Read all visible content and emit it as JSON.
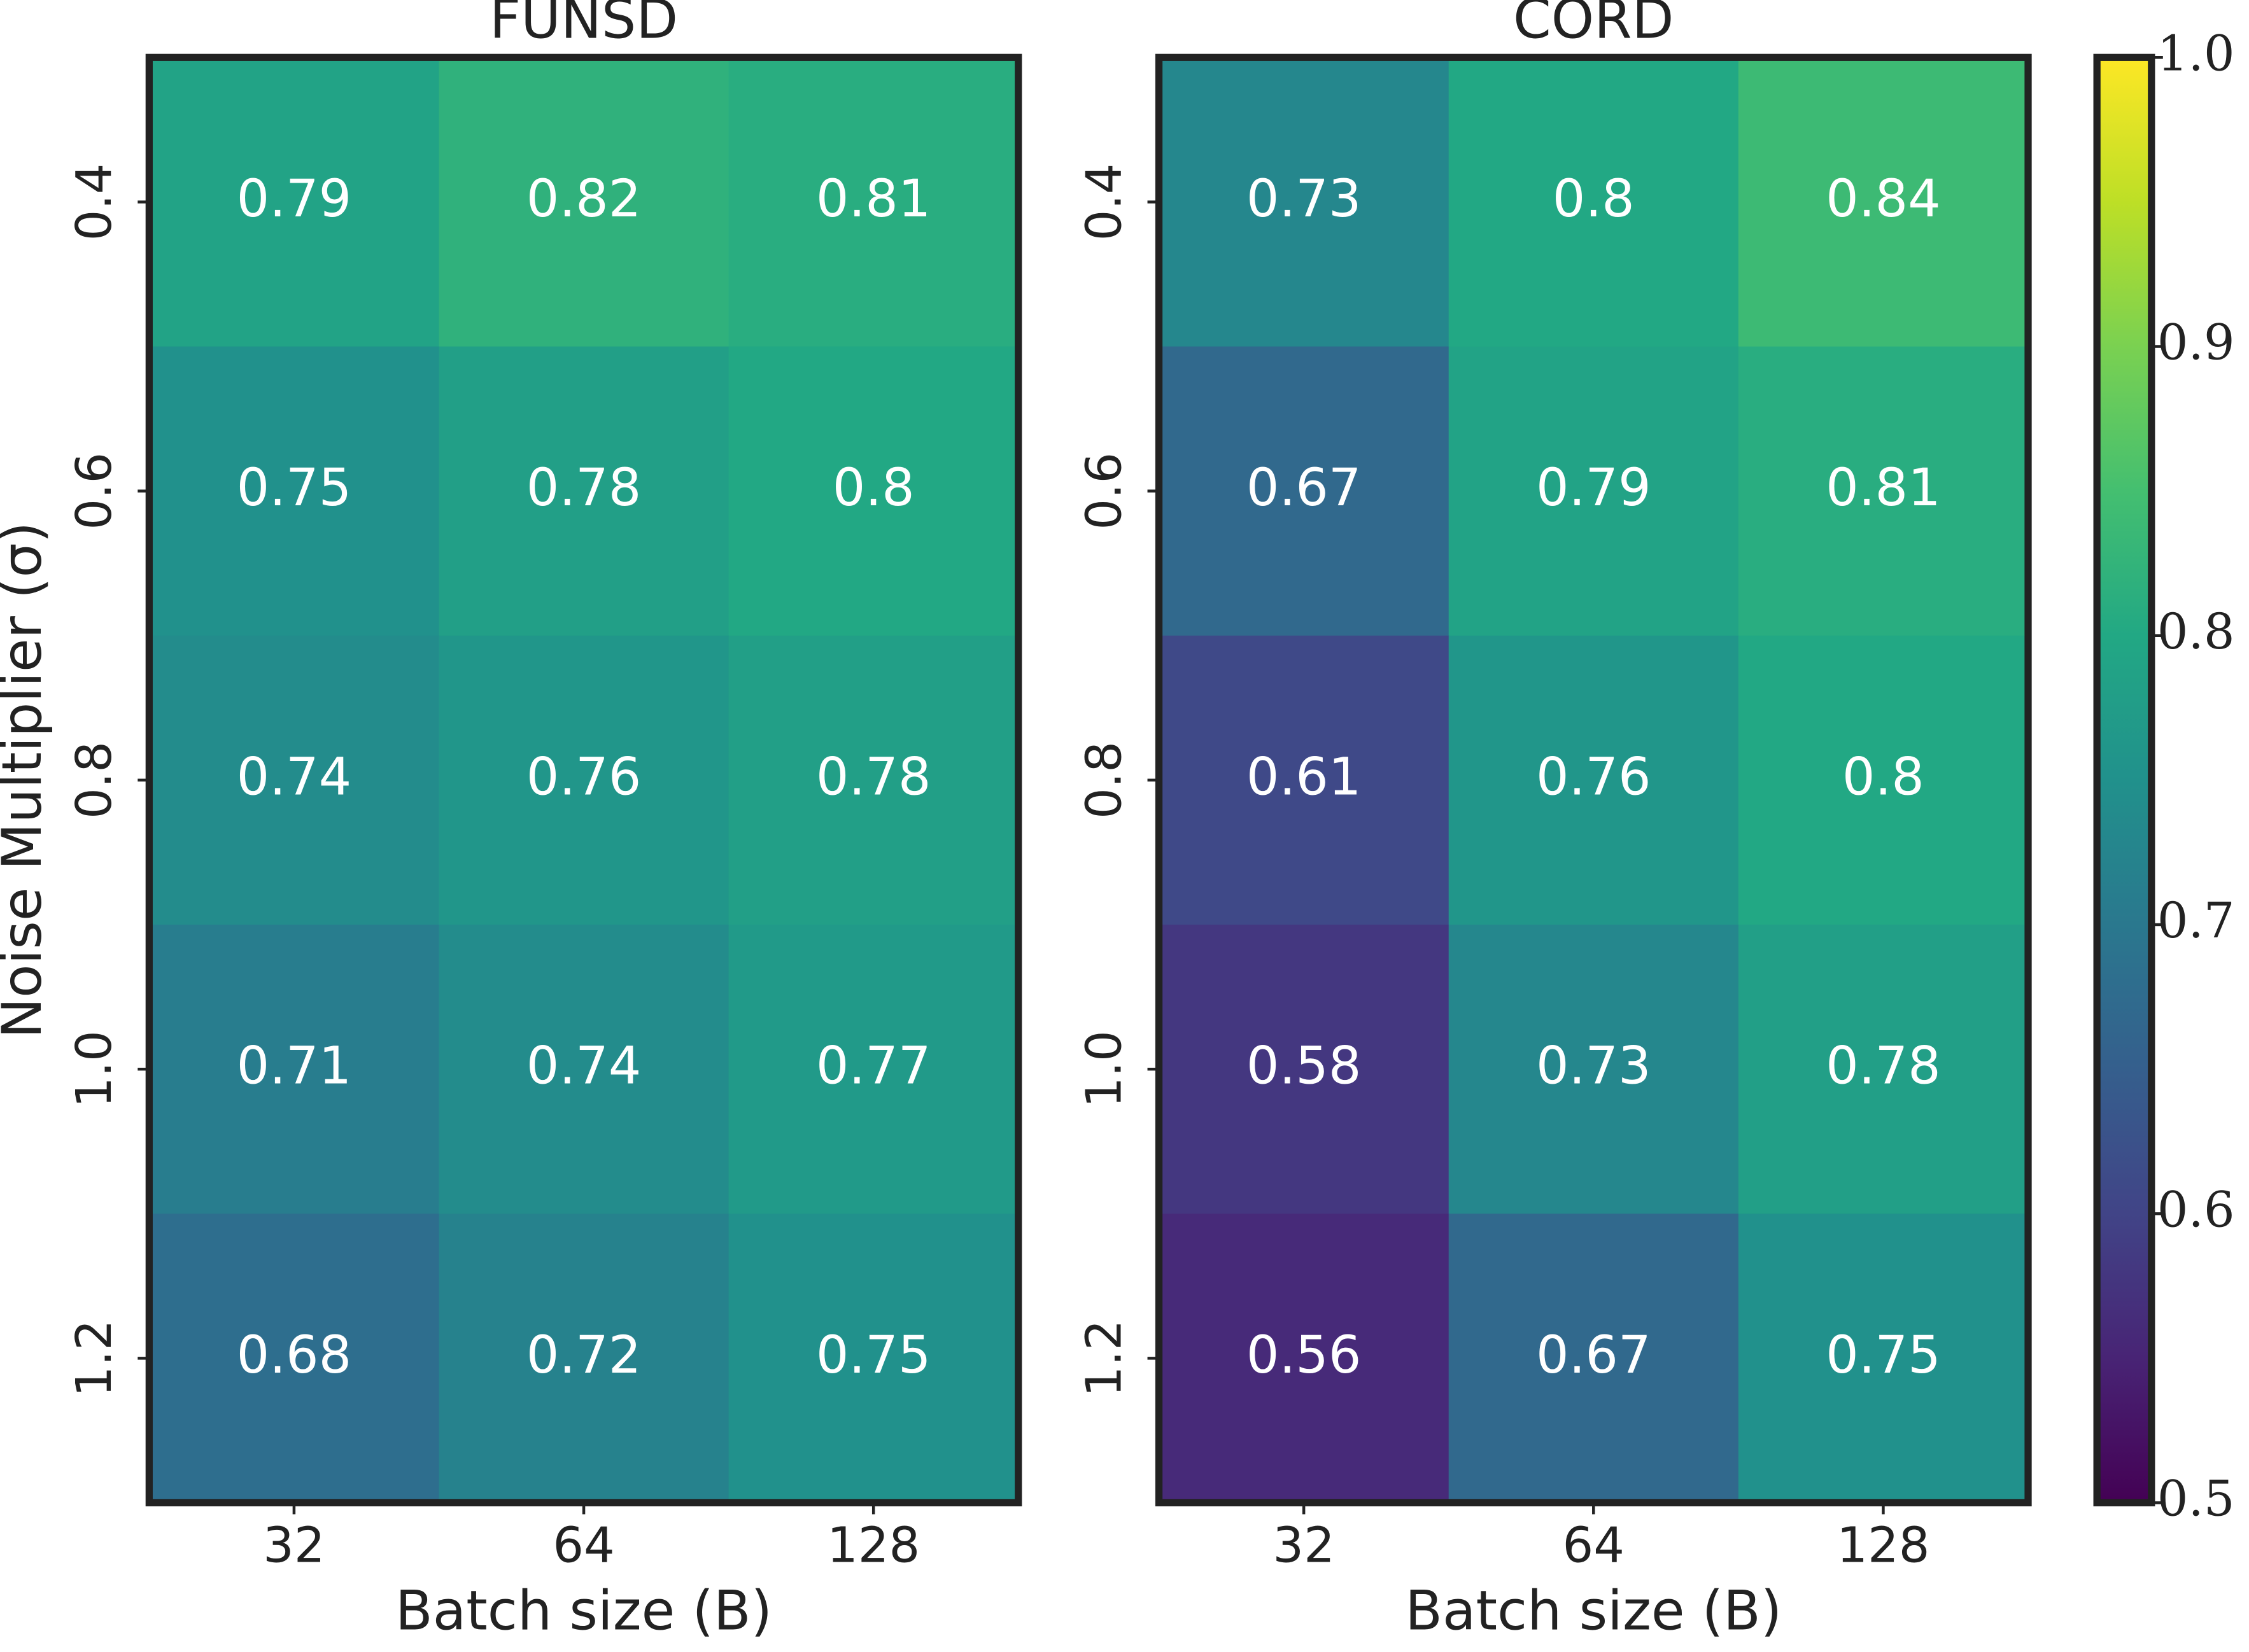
{
  "chart_data": [
    {
      "type": "heatmap",
      "title": "FUNSD",
      "x_label": "Batch size (B)",
      "y_label": "Noise Multiplier (σ)",
      "categories": [
        "32",
        "64",
        "128"
      ],
      "y_categories": [
        "0.4",
        "0.6",
        "0.8",
        "1.0",
        "1.2"
      ],
      "values": [
        [
          0.79,
          0.82,
          0.81
        ],
        [
          0.75,
          0.78,
          0.8
        ],
        [
          0.74,
          0.76,
          0.78
        ],
        [
          0.71,
          0.74,
          0.77
        ],
        [
          0.68,
          0.72,
          0.75
        ]
      ],
      "colormap": "viridis"
    },
    {
      "type": "heatmap",
      "title": "CORD",
      "x_label": "Batch size (B)",
      "categories": [
        "32",
        "64",
        "128"
      ],
      "y_categories": [
        "0.4",
        "0.6",
        "0.8",
        "1.0",
        "1.2"
      ],
      "values": [
        [
          0.73,
          0.8,
          0.84
        ],
        [
          0.67,
          0.79,
          0.81
        ],
        [
          0.61,
          0.76,
          0.8
        ],
        [
          0.58,
          0.73,
          0.78
        ],
        [
          0.56,
          0.67,
          0.75
        ]
      ],
      "colormap": "viridis"
    }
  ],
  "colorbar": {
    "lim": [
      0.5,
      1
    ],
    "ticks": [
      0.5,
      0.6,
      0.7,
      0.8,
      0.9,
      {
        "value": 1,
        "label": "1.0"
      }
    ]
  }
}
